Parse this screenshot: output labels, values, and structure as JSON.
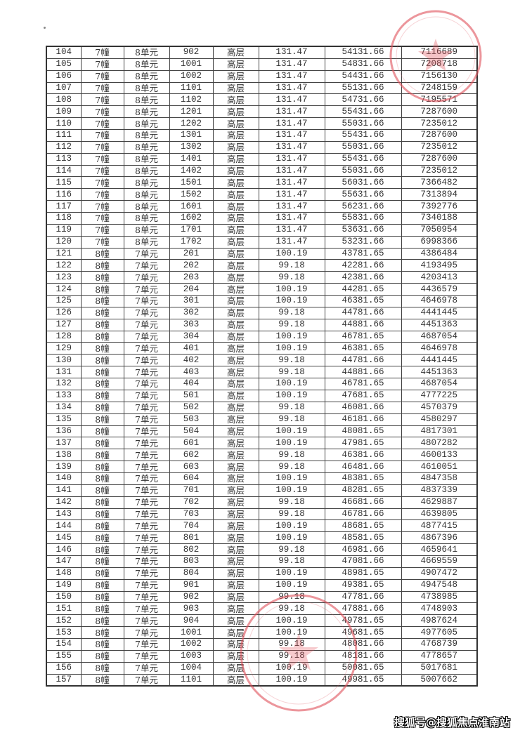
{
  "table": {
    "rows": [
      [
        "104",
        "7幢",
        "8单元",
        "902",
        "高层",
        "131.47",
        "54131.66",
        "7116689"
      ],
      [
        "105",
        "7幢",
        "8单元",
        "1001",
        "高层",
        "131.47",
        "54831.66",
        "7208718"
      ],
      [
        "106",
        "7幢",
        "8单元",
        "1002",
        "高层",
        "131.47",
        "54431.66",
        "7156130"
      ],
      [
        "107",
        "7幢",
        "8单元",
        "1101",
        "高层",
        "131.47",
        "55131.66",
        "7248159"
      ],
      [
        "108",
        "7幢",
        "8单元",
        "1102",
        "高层",
        "131.47",
        "54731.66",
        "7195571"
      ],
      [
        "109",
        "7幢",
        "8单元",
        "1201",
        "高层",
        "131.47",
        "55431.66",
        "7287600"
      ],
      [
        "110",
        "7幢",
        "8单元",
        "1202",
        "高层",
        "131.47",
        "55031.66",
        "7235012"
      ],
      [
        "111",
        "7幢",
        "8单元",
        "1301",
        "高层",
        "131.47",
        "55431.66",
        "7287600"
      ],
      [
        "112",
        "7幢",
        "8单元",
        "1302",
        "高层",
        "131.47",
        "55031.66",
        "7235012"
      ],
      [
        "113",
        "7幢",
        "8单元",
        "1401",
        "高层",
        "131.47",
        "55431.66",
        "7287600"
      ],
      [
        "114",
        "7幢",
        "8单元",
        "1402",
        "高层",
        "131.47",
        "55031.66",
        "7235012"
      ],
      [
        "115",
        "7幢",
        "8单元",
        "1501",
        "高层",
        "131.47",
        "56031.66",
        "7366482"
      ],
      [
        "116",
        "7幢",
        "8单元",
        "1502",
        "高层",
        "131.47",
        "55631.66",
        "7313894"
      ],
      [
        "117",
        "7幢",
        "8单元",
        "1601",
        "高层",
        "131.47",
        "56231.66",
        "7392776"
      ],
      [
        "118",
        "7幢",
        "8单元",
        "1602",
        "高层",
        "131.47",
        "55831.66",
        "7340188"
      ],
      [
        "119",
        "7幢",
        "8单元",
        "1701",
        "高层",
        "131.47",
        "53631.66",
        "7050954"
      ],
      [
        "120",
        "7幢",
        "8单元",
        "1702",
        "高层",
        "131.47",
        "53231.66",
        "6998366"
      ],
      [
        "121",
        "8幢",
        "7单元",
        "201",
        "高层",
        "100.19",
        "43781.65",
        "4386484"
      ],
      [
        "122",
        "8幢",
        "7单元",
        "202",
        "高层",
        "99.18",
        "42281.66",
        "4193495"
      ],
      [
        "123",
        "8幢",
        "7单元",
        "203",
        "高层",
        "99.18",
        "42381.66",
        "4203413"
      ],
      [
        "124",
        "8幢",
        "7单元",
        "204",
        "高层",
        "100.19",
        "44281.65",
        "4436579"
      ],
      [
        "125",
        "8幢",
        "7单元",
        "301",
        "高层",
        "100.19",
        "46381.65",
        "4646978"
      ],
      [
        "126",
        "8幢",
        "7单元",
        "302",
        "高层",
        "99.18",
        "44781.66",
        "4441445"
      ],
      [
        "127",
        "8幢",
        "7单元",
        "303",
        "高层",
        "99.18",
        "44881.66",
        "4451363"
      ],
      [
        "128",
        "8幢",
        "7单元",
        "304",
        "高层",
        "100.19",
        "46781.65",
        "4687054"
      ],
      [
        "129",
        "8幢",
        "7单元",
        "401",
        "高层",
        "100.19",
        "46381.65",
        "4646978"
      ],
      [
        "130",
        "8幢",
        "7单元",
        "402",
        "高层",
        "99.18",
        "44781.66",
        "4441445"
      ],
      [
        "131",
        "8幢",
        "7单元",
        "403",
        "高层",
        "99.18",
        "44881.66",
        "4451363"
      ],
      [
        "132",
        "8幢",
        "7单元",
        "404",
        "高层",
        "100.19",
        "46781.65",
        "4687054"
      ],
      [
        "133",
        "8幢",
        "7单元",
        "501",
        "高层",
        "100.19",
        "47681.65",
        "4777225"
      ],
      [
        "134",
        "8幢",
        "7单元",
        "502",
        "高层",
        "99.18",
        "46081.66",
        "4570379"
      ],
      [
        "135",
        "8幢",
        "7单元",
        "503",
        "高层",
        "99.18",
        "46181.66",
        "4580297"
      ],
      [
        "136",
        "8幢",
        "7单元",
        "504",
        "高层",
        "100.19",
        "48081.65",
        "4817301"
      ],
      [
        "137",
        "8幢",
        "7单元",
        "601",
        "高层",
        "100.19",
        "47981.65",
        "4807282"
      ],
      [
        "138",
        "8幢",
        "7单元",
        "602",
        "高层",
        "99.18",
        "46381.66",
        "4600133"
      ],
      [
        "139",
        "8幢",
        "7单元",
        "603",
        "高层",
        "99.18",
        "46481.66",
        "4610051"
      ],
      [
        "140",
        "8幢",
        "7单元",
        "604",
        "高层",
        "100.19",
        "48381.65",
        "4847358"
      ],
      [
        "141",
        "8幢",
        "7单元",
        "701",
        "高层",
        "100.19",
        "48281.65",
        "4837339"
      ],
      [
        "142",
        "8幢",
        "7单元",
        "702",
        "高层",
        "99.18",
        "46681.66",
        "4629887"
      ],
      [
        "143",
        "8幢",
        "7单元",
        "703",
        "高层",
        "99.18",
        "46781.66",
        "4639805"
      ],
      [
        "144",
        "8幢",
        "7单元",
        "704",
        "高层",
        "100.19",
        "48681.65",
        "4877415"
      ],
      [
        "145",
        "8幢",
        "7单元",
        "801",
        "高层",
        "100.19",
        "48581.65",
        "4867396"
      ],
      [
        "146",
        "8幢",
        "7单元",
        "802",
        "高层",
        "99.18",
        "46981.66",
        "4659641"
      ],
      [
        "147",
        "8幢",
        "7单元",
        "803",
        "高层",
        "99.18",
        "47081.66",
        "4669559"
      ],
      [
        "148",
        "8幢",
        "7单元",
        "804",
        "高层",
        "100.19",
        "48981.65",
        "4907472"
      ],
      [
        "149",
        "8幢",
        "7单元",
        "901",
        "高层",
        "100.19",
        "49381.65",
        "4947548"
      ],
      [
        "150",
        "8幢",
        "7单元",
        "902",
        "高层",
        "99.18",
        "47781.66",
        "4738985"
      ],
      [
        "151",
        "8幢",
        "7单元",
        "903",
        "高层",
        "99.18",
        "47881.66",
        "4748903"
      ],
      [
        "152",
        "8幢",
        "7单元",
        "904",
        "高层",
        "100.19",
        "49781.65",
        "4987624"
      ],
      [
        "153",
        "8幢",
        "7单元",
        "1001",
        "高层",
        "100.19",
        "49681.65",
        "4977605"
      ],
      [
        "154",
        "8幢",
        "7单元",
        "1002",
        "高层",
        "99.18",
        "48081.66",
        "4768739"
      ],
      [
        "155",
        "8幢",
        "7单元",
        "1003",
        "高层",
        "99.18",
        "48181.66",
        "4778657"
      ],
      [
        "156",
        "8幢",
        "7单元",
        "1004",
        "高层",
        "100.19",
        "50081.65",
        "5017681"
      ],
      [
        "157",
        "8幢",
        "7单元",
        "1101",
        "高层",
        "100.19",
        "49981.65",
        "5007662"
      ]
    ]
  },
  "stamps": {
    "color": "#e0505a"
  },
  "watermark": "搜狐号@搜狐焦点淮南站"
}
